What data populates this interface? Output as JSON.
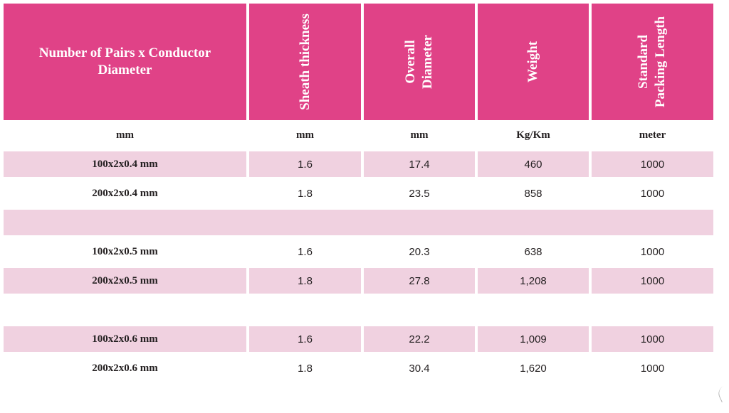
{
  "table": {
    "headers": [
      {
        "line1": "Number of Pairs x Conductor",
        "line2": "Diameter"
      },
      {
        "line1": "Sheath thickness",
        "line2": ""
      },
      {
        "line1": "Overall",
        "line2": "Diameter"
      },
      {
        "line1": "Weight",
        "line2": ""
      },
      {
        "line1": "Standard",
        "line2": "Packing Length"
      }
    ],
    "units": [
      "mm",
      "mm",
      "mm",
      "Kg/Km",
      "meter"
    ],
    "rows": [
      [
        "100x2x0.4 mm",
        "1.6",
        "17.4",
        "460",
        "1000"
      ],
      [
        "200x2x0.4 mm",
        "1.8",
        "23.5",
        "858",
        "1000"
      ],
      [
        "",
        "",
        "",
        "",
        ""
      ],
      [
        "100x2x0.5 mm",
        "1.6",
        "20.3",
        "638",
        "1000"
      ],
      [
        "200x2x0.5 mm",
        "1.8",
        "27.8",
        "1,208",
        "1000"
      ],
      [
        "",
        "",
        "",
        "",
        ""
      ],
      [
        "100x2x0.6 mm",
        "1.6",
        "22.2",
        "1,009",
        "1000"
      ],
      [
        "200x2x0.6 mm",
        "1.8",
        "30.4",
        "1,620",
        "1000"
      ]
    ]
  },
  "colors": {
    "header_bg": "#e04287",
    "row_shade": "#f0d1e0",
    "text": "#231f20"
  }
}
